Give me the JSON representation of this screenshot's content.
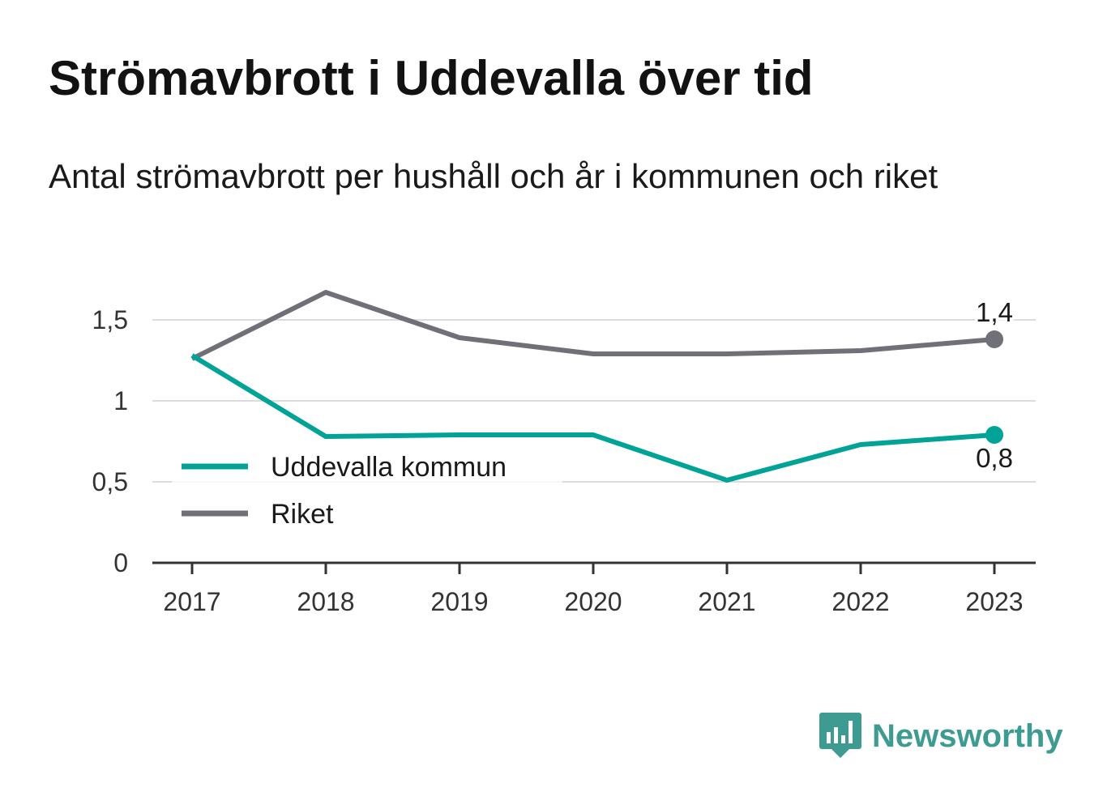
{
  "chart_data": {
    "type": "line",
    "title": "Strömavbrott i Uddevalla över tid",
    "subtitle": "Antal strömavbrott per hushåll och år i kommunen och riket",
    "x": [
      "2017",
      "2018",
      "2019",
      "2020",
      "2021",
      "2022",
      "2023"
    ],
    "series": [
      {
        "name": "Uddevalla kommun",
        "color": "#00a396",
        "values": [
          1.28,
          0.78,
          0.79,
          0.79,
          0.51,
          0.73,
          0.79
        ],
        "end_label": "0,8"
      },
      {
        "name": "Riket",
        "color": "#707078",
        "values": [
          1.26,
          1.67,
          1.39,
          1.29,
          1.29,
          1.31,
          1.38
        ],
        "end_label": "1,4"
      }
    ],
    "ylim": [
      0,
      1.75
    ],
    "yticks": [
      {
        "value": 0,
        "label": "0"
      },
      {
        "value": 0.5,
        "label": "0,5"
      },
      {
        "value": 1,
        "label": "1"
      },
      {
        "value": 1.5,
        "label": "1,5"
      }
    ],
    "grid": true,
    "legend_position": "bottom-left"
  },
  "brand": {
    "name": "Newsworthy",
    "icon": "newsworthy-logo-icon"
  }
}
